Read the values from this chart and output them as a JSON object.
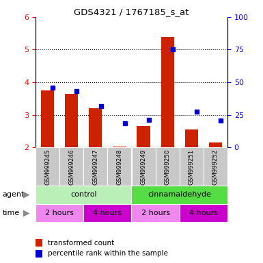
{
  "title": "GDS4321 / 1767185_s_at",
  "samples": [
    "GSM999245",
    "GSM999246",
    "GSM999247",
    "GSM999248",
    "GSM999249",
    "GSM999250",
    "GSM999251",
    "GSM999252"
  ],
  "red_values": [
    3.75,
    3.65,
    3.2,
    2.02,
    2.65,
    5.38,
    2.55,
    2.15
  ],
  "blue_values": [
    3.83,
    3.72,
    3.27,
    2.73,
    2.85,
    5.0,
    3.1,
    2.82
  ],
  "ylim_left": [
    2,
    6
  ],
  "ylim_right": [
    0,
    100
  ],
  "yticks_left": [
    2,
    3,
    4,
    5,
    6
  ],
  "yticks_right": [
    0,
    25,
    50,
    75,
    100
  ],
  "legend_red": "transformed count",
  "legend_blue": "percentile rank within the sample",
  "bar_color": "#CC2200",
  "dot_color": "#0000CC",
  "sample_bg_color": "#C8C8C8",
  "agent_color_control": "#B8F0B8",
  "agent_color_cinn": "#55DD44",
  "time_color_2h": "#EE88EE",
  "time_color_4h": "#CC00CC",
  "grid_yticks": [
    3,
    4,
    5
  ]
}
